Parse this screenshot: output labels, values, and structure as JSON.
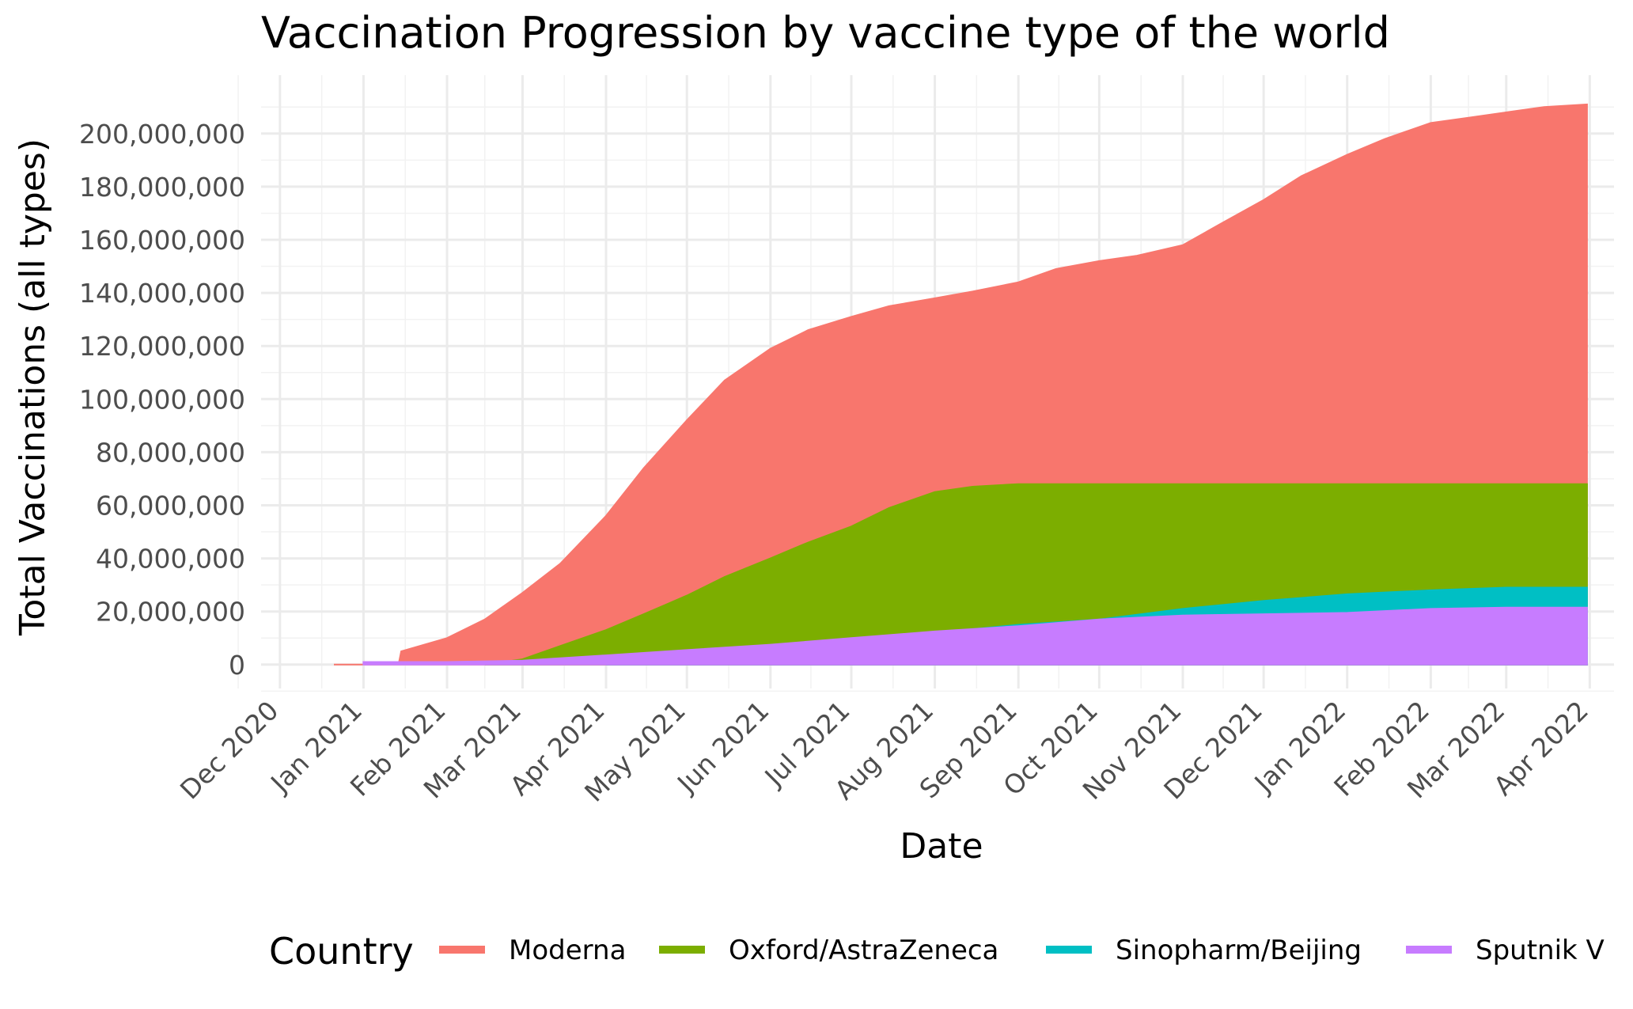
{
  "chart_data": {
    "type": "area",
    "title": "Vaccination Progression by vaccine type of the world",
    "xlabel": "Date",
    "ylabel": "Total Vaccinations (all types)",
    "x_tick_labels": [
      "Dec 2020",
      "Jan 2021",
      "Feb 2021",
      "Mar 2021",
      "Apr 2021",
      "May 2021",
      "Jun 2021",
      "Jul 2021",
      "Aug 2021",
      "Sep 2021",
      "Oct 2021",
      "Nov 2021",
      "Dec 2021",
      "Jan 2022",
      "Feb 2022",
      "Mar 2022",
      "Apr 2022"
    ],
    "x_tick_dates": [
      "2020-12-01",
      "2021-01-01",
      "2021-02-01",
      "2021-03-01",
      "2021-04-01",
      "2021-05-01",
      "2021-06-01",
      "2021-07-01",
      "2021-08-01",
      "2021-09-01",
      "2021-10-01",
      "2021-11-01",
      "2021-12-01",
      "2022-01-01",
      "2022-02-01",
      "2022-03-01",
      "2022-04-01"
    ],
    "y_tick_labels": [
      "0",
      "20,000,000",
      "40,000,000",
      "60,000,000",
      "80,000,000",
      "100,000,000",
      "120,000,000",
      "140,000,000",
      "160,000,000",
      "180,000,000",
      "200,000,000"
    ],
    "y_tick_values": [
      0,
      20000000,
      40000000,
      60000000,
      80000000,
      100000000,
      120000000,
      140000000,
      160000000,
      180000000,
      200000000
    ],
    "xlim": [
      "2020-11-24",
      "2022-04-10"
    ],
    "ylim": [
      -9000000,
      222000000
    ],
    "grid": true,
    "legend": {
      "title": "Country",
      "position": "bottom"
    },
    "series": [
      {
        "name": "Moderna",
        "color": "#F8766D",
        "points": [
          [
            "2020-12-21",
            0
          ],
          [
            "2021-01-14",
            0
          ],
          [
            "2021-01-15",
            5000000
          ],
          [
            "2021-02-01",
            10000000
          ],
          [
            "2021-02-15",
            17000000
          ],
          [
            "2021-03-01",
            27000000
          ],
          [
            "2021-03-15",
            38000000
          ],
          [
            "2021-04-01",
            56000000
          ],
          [
            "2021-04-15",
            74000000
          ],
          [
            "2021-05-01",
            92000000
          ],
          [
            "2021-05-15",
            107000000
          ],
          [
            "2021-06-01",
            119000000
          ],
          [
            "2021-06-15",
            126000000
          ],
          [
            "2021-07-01",
            131000000
          ],
          [
            "2021-07-15",
            135000000
          ],
          [
            "2021-08-01",
            138000000
          ],
          [
            "2021-08-15",
            140500000
          ],
          [
            "2021-09-01",
            144000000
          ],
          [
            "2021-09-15",
            149000000
          ],
          [
            "2021-10-01",
            152000000
          ],
          [
            "2021-10-15",
            154000000
          ],
          [
            "2021-11-01",
            158000000
          ],
          [
            "2021-11-15",
            166000000
          ],
          [
            "2021-12-01",
            175000000
          ],
          [
            "2021-12-15",
            184000000
          ],
          [
            "2022-01-01",
            192000000
          ],
          [
            "2022-01-15",
            198000000
          ],
          [
            "2022-02-01",
            204000000
          ],
          [
            "2022-02-15",
            206000000
          ],
          [
            "2022-03-01",
            208000000
          ],
          [
            "2022-03-15",
            210000000
          ],
          [
            "2022-03-31",
            211000000
          ]
        ]
      },
      {
        "name": "Oxford/AstraZeneca",
        "color": "#7CAE00",
        "points": [
          [
            "2021-02-15",
            0
          ],
          [
            "2021-03-01",
            2000000
          ],
          [
            "2021-03-15",
            7000000
          ],
          [
            "2021-04-01",
            13000000
          ],
          [
            "2021-04-15",
            19000000
          ],
          [
            "2021-05-01",
            26000000
          ],
          [
            "2021-05-15",
            33000000
          ],
          [
            "2021-06-01",
            40000000
          ],
          [
            "2021-06-15",
            46000000
          ],
          [
            "2021-07-01",
            52000000
          ],
          [
            "2021-07-15",
            59000000
          ],
          [
            "2021-08-01",
            65000000
          ],
          [
            "2021-08-15",
            67000000
          ],
          [
            "2021-09-01",
            68000000
          ],
          [
            "2022-03-31",
            68000000
          ]
        ]
      },
      {
        "name": "Sinopharm/Beijing",
        "color": "#00BFC4",
        "points": [
          [
            "2021-04-01",
            0
          ],
          [
            "2021-09-01",
            15000000
          ],
          [
            "2021-10-01",
            17000000
          ],
          [
            "2021-11-01",
            21000000
          ],
          [
            "2021-12-01",
            24000000
          ],
          [
            "2022-01-01",
            26500000
          ],
          [
            "2022-02-01",
            28000000
          ],
          [
            "2022-03-01",
            29000000
          ],
          [
            "2022-03-31",
            29000000
          ]
        ]
      },
      {
        "name": "Sputnik V",
        "color": "#C77CFF",
        "points": [
          [
            "2021-01-01",
            1000000
          ],
          [
            "2021-02-01",
            1000000
          ],
          [
            "2021-03-01",
            1500000
          ],
          [
            "2021-04-01",
            3500000
          ],
          [
            "2021-05-01",
            5500000
          ],
          [
            "2021-06-01",
            7500000
          ],
          [
            "2021-07-01",
            10000000
          ],
          [
            "2021-08-01",
            12500000
          ],
          [
            "2021-09-01",
            14500000
          ],
          [
            "2021-10-01",
            17000000
          ],
          [
            "2021-11-01",
            18500000
          ],
          [
            "2021-12-01",
            19000000
          ],
          [
            "2022-01-01",
            19500000
          ],
          [
            "2022-02-01",
            21000000
          ],
          [
            "2022-03-01",
            21500000
          ],
          [
            "2022-03-31",
            21500000
          ]
        ]
      }
    ]
  }
}
